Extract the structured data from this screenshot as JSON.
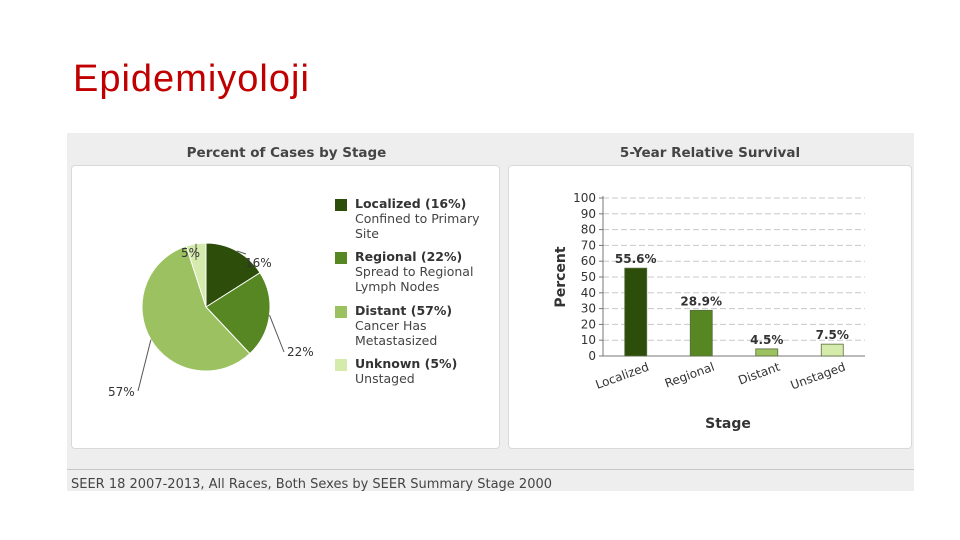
{
  "slide": {
    "title": "Epidemiyoloji"
  },
  "left_panel": {
    "title": "Percent of Cases by Stage",
    "legend": [
      {
        "label": "Localized (16%)",
        "desc": "Confined to Primary Site",
        "color": "#2d4d0a"
      },
      {
        "label": "Regional (22%)",
        "desc": "Spread to Regional Lymph Nodes",
        "color": "#568722"
      },
      {
        "label": "Distant (57%)",
        "desc": "Cancer Has Metastasized",
        "color": "#9bc160"
      },
      {
        "label": "Unknown (5%)",
        "desc": "Unstaged",
        "color": "#d5ebac"
      }
    ]
  },
  "right_panel": {
    "title": "5-Year Relative Survival"
  },
  "footer": {
    "text": "SEER 18 2007-2013, All Races, Both Sexes by SEER Summary Stage 2000"
  },
  "chart_data": [
    {
      "type": "pie",
      "title": "Percent of Cases by Stage",
      "slices": [
        {
          "name": "Localized",
          "value": 16,
          "label": "16%",
          "color": "#2d4d0a"
        },
        {
          "name": "Regional",
          "value": 22,
          "label": "22%",
          "color": "#568722"
        },
        {
          "name": "Distant",
          "value": 57,
          "label": "57%",
          "color": "#9bc160"
        },
        {
          "name": "Unknown",
          "value": 5,
          "label": "5%",
          "color": "#d5ebac"
        }
      ]
    },
    {
      "type": "bar",
      "title": "5-Year Relative Survival",
      "categories": [
        "Localized",
        "Regional",
        "Distant",
        "Unstaged"
      ],
      "values": [
        55.6,
        28.9,
        4.5,
        7.5
      ],
      "value_labels": [
        "55.6%",
        "28.9%",
        "4.5%",
        "7.5%"
      ],
      "colors": [
        "#2d4d0a",
        "#568722",
        "#9bc160",
        "#d5ebac"
      ],
      "xlabel": "Stage",
      "ylabel": "Percent",
      "ylim": [
        0,
        100
      ],
      "yticks": [
        0,
        10,
        20,
        30,
        40,
        50,
        60,
        70,
        80,
        90,
        100
      ],
      "grid": true
    }
  ]
}
